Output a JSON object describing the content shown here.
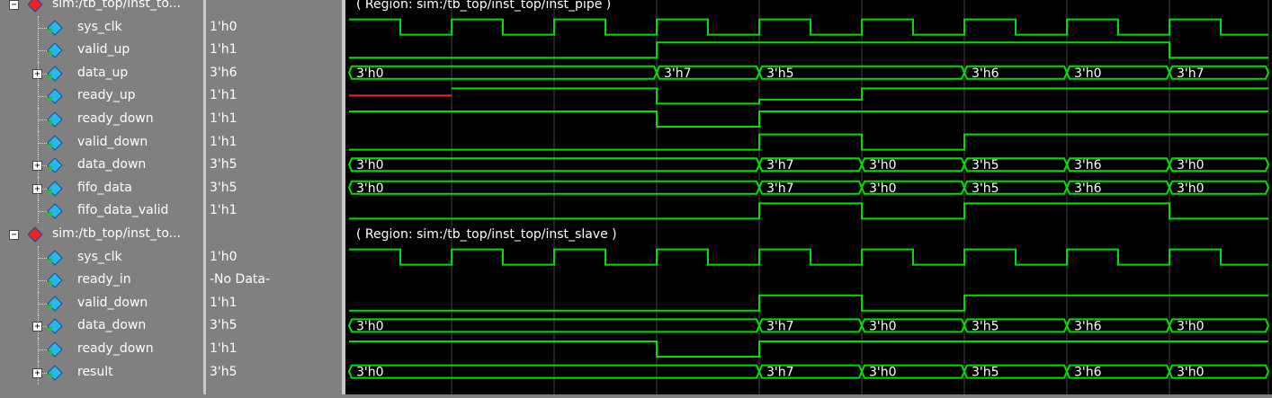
{
  "groups": [
    {
      "label": "sim:/tb_top/inst_to...",
      "region_label": "( Region: sim:/tb_top/inst_top/inst_pipe )"
    },
    {
      "label": "sim:/tb_top/inst_to...",
      "region_label": "( Region: sim:/tb_top/inst_top/inst_slave )"
    }
  ],
  "signals": [
    {
      "name": "sys_clk",
      "value": "1'h0",
      "kind": "clk",
      "expandable": false,
      "icon_color": "#27b7f5"
    },
    {
      "name": "valid_up",
      "value": "1'h1",
      "kind": "bit",
      "expandable": false,
      "icon_color": "#27b7f5",
      "levels": [
        0,
        0,
        0,
        1,
        1,
        1,
        1,
        1,
        0
      ]
    },
    {
      "name": "data_up",
      "value": "3'h6",
      "kind": "bus",
      "expandable": true,
      "icon_color": "#27b7f5",
      "segments": [
        {
          "from": 0,
          "label": "3'h0"
        },
        {
          "from": 3,
          "label": "3'h7"
        },
        {
          "from": 4,
          "label": "3'h5"
        },
        {
          "from": 6,
          "label": "3'h6"
        },
        {
          "from": 7,
          "label": "3'h0"
        },
        {
          "from": 8,
          "label": "3'h7"
        }
      ]
    },
    {
      "name": "ready_up",
      "value": "1'h1",
      "kind": "bit",
      "expandable": false,
      "icon_color": "#27b7f5",
      "levels": [
        "x",
        1,
        1,
        0,
        "mid",
        1,
        1,
        1,
        1
      ]
    },
    {
      "name": "ready_down",
      "value": "1'h1",
      "kind": "bit",
      "expandable": false,
      "icon_color": "#27b7f5",
      "levels": [
        1,
        1,
        1,
        0,
        1,
        1,
        1,
        1,
        1
      ]
    },
    {
      "name": "valid_down",
      "value": "1'h1",
      "kind": "bit",
      "expandable": false,
      "icon_color": "#27b7f5",
      "levels": [
        0,
        0,
        0,
        0,
        1,
        0,
        1,
        1,
        1
      ]
    },
    {
      "name": "data_down",
      "value": "3'h5",
      "kind": "bus",
      "expandable": true,
      "icon_color": "#27b7f5",
      "segments": [
        {
          "from": 0,
          "label": "3'h0"
        },
        {
          "from": 4,
          "label": "3'h7"
        },
        {
          "from": 5,
          "label": "3'h0"
        },
        {
          "from": 6,
          "label": "3'h5"
        },
        {
          "from": 7,
          "label": "3'h6"
        },
        {
          "from": 8,
          "label": "3'h0"
        }
      ]
    },
    {
      "name": "fifo_data",
      "value": "3'h5",
      "kind": "bus",
      "expandable": true,
      "icon_color": "#27b7f5",
      "segments": [
        {
          "from": 0,
          "label": "3'h0"
        },
        {
          "from": 4,
          "label": "3'h7"
        },
        {
          "from": 5,
          "label": "3'h0"
        },
        {
          "from": 6,
          "label": "3'h5"
        },
        {
          "from": 7,
          "label": "3'h6"
        },
        {
          "from": 8,
          "label": "3'h0"
        }
      ]
    },
    {
      "name": "fifo_data_valid",
      "value": "1'h1",
      "kind": "bit",
      "expandable": false,
      "icon_color": "#27b7f5",
      "levels": [
        0,
        0,
        0,
        0,
        1,
        0,
        1,
        1,
        0
      ]
    },
    {
      "name": "sys_clk",
      "value": "1'h0",
      "kind": "clk",
      "expandable": false,
      "icon_color": "#27b7f5"
    },
    {
      "name": "ready_in",
      "value": "-No Data-",
      "kind": "none",
      "expandable": false,
      "icon_color": "#27b7f5"
    },
    {
      "name": "valid_down",
      "value": "1'h1",
      "kind": "bit",
      "expandable": false,
      "icon_color": "#27b7f5",
      "levels": [
        0,
        0,
        0,
        0,
        1,
        0,
        1,
        1,
        1
      ]
    },
    {
      "name": "data_down",
      "value": "3'h5",
      "kind": "bus",
      "expandable": true,
      "icon_color": "#27b7f5",
      "segments": [
        {
          "from": 0,
          "label": "3'h0"
        },
        {
          "from": 4,
          "label": "3'h7"
        },
        {
          "from": 5,
          "label": "3'h0"
        },
        {
          "from": 6,
          "label": "3'h5"
        },
        {
          "from": 7,
          "label": "3'h6"
        },
        {
          "from": 8,
          "label": "3'h0"
        }
      ]
    },
    {
      "name": "ready_down",
      "value": "1'h1",
      "kind": "bit",
      "expandable": false,
      "icon_color": "#27b7f5",
      "levels": [
        1,
        1,
        1,
        0,
        1,
        1,
        1,
        1,
        1
      ]
    },
    {
      "name": "result",
      "value": "3'h5",
      "kind": "bus",
      "expandable": true,
      "icon_color": "#27b7f5",
      "segments": [
        {
          "from": 0,
          "label": "3'h0"
        },
        {
          "from": 4,
          "label": "3'h7"
        },
        {
          "from": 5,
          "label": "3'h0"
        },
        {
          "from": 6,
          "label": "3'h5"
        },
        {
          "from": 7,
          "label": "3'h6"
        },
        {
          "from": 8,
          "label": "3'h0"
        }
      ]
    }
  ],
  "colors": {
    "wave": "#00e000",
    "undefined": "#ff2020",
    "grid": "#404040",
    "group_icon": "#e8232a",
    "region_text": "#ffffff",
    "name_text": "#ffffff",
    "value_text": "#ffffff"
  },
  "icons": {
    "group": "red-diamond-icon",
    "signal": "blue-diamond-arrow-icon",
    "expander_collapsed": "plus-icon",
    "expander_expanded": "minus-icon"
  }
}
